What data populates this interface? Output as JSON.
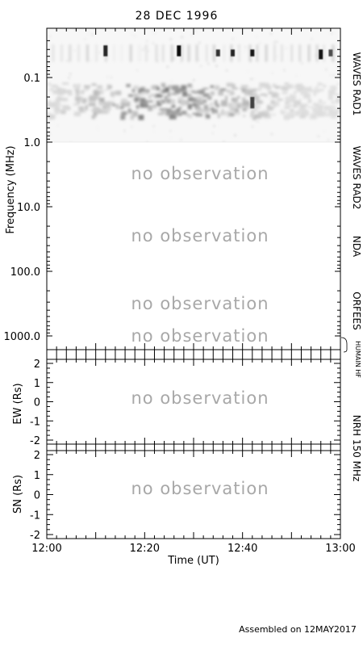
{
  "title": "28 DEC 1996",
  "footer": "Assembled on 12MAY2017",
  "colors": {
    "no_observation": "#a8a8a8",
    "axis": "#000000"
  },
  "no_observation_text": "no observation",
  "chart_data": [
    {
      "type": "heatmap",
      "ylabel": "Frequency (MHz)",
      "yscale": "log",
      "ylim": [
        0.02,
        1500
      ],
      "y_ticks": [
        "0.1",
        "1.0",
        "10.0",
        "100.0",
        "1000.0"
      ],
      "xlim": [
        "12:00",
        "13:00"
      ],
      "instrument_labels": [
        "WAVES RAD1",
        "WAVES RAD2",
        "NDA",
        "ORFEES",
        "HUMAIN HF"
      ],
      "bands": [
        {
          "instrument": "WAVES RAD1",
          "range_mhz": [
            0.02,
            1.0
          ],
          "status": "observed"
        },
        {
          "instrument": "WAVES RAD2",
          "range_mhz": [
            1.0,
            14.0
          ],
          "status": "no observation"
        },
        {
          "instrument": "NDA",
          "range_mhz": [
            14.0,
            80.0
          ],
          "status": "no observation"
        },
        {
          "instrument": "ORFEES",
          "range_mhz": [
            140.0,
            1000.0
          ],
          "status": "no observation"
        },
        {
          "instrument": "HUMAIN HF",
          "range_mhz": [
            1000.0,
            1500.0
          ],
          "status": "no observation"
        }
      ],
      "bursts": [
        {
          "time": "12:12",
          "freq_mhz": [
            0.035,
            0.05
          ],
          "intensity": 0.85
        },
        {
          "time": "12:27",
          "freq_mhz": [
            0.035,
            0.05
          ],
          "intensity": 0.95
        },
        {
          "time": "12:35",
          "freq_mhz": [
            0.04,
            0.05
          ],
          "intensity": 0.8
        },
        {
          "time": "12:38",
          "freq_mhz": [
            0.04,
            0.05
          ],
          "intensity": 0.85
        },
        {
          "time": "12:42",
          "freq_mhz": [
            0.04,
            0.05
          ],
          "intensity": 0.9
        },
        {
          "time": "12:42",
          "freq_mhz": [
            0.2,
            0.3
          ],
          "intensity": 0.75
        },
        {
          "time": "12:56",
          "freq_mhz": [
            0.04,
            0.055
          ],
          "intensity": 0.9
        },
        {
          "time": "12:58",
          "freq_mhz": [
            0.04,
            0.05
          ],
          "intensity": 0.7
        }
      ]
    },
    {
      "type": "scatter",
      "ylabel": "EW (Rs)",
      "right_label": "NRH 150 MHz",
      "ylim": [
        -2,
        2
      ],
      "y_ticks": [
        "2",
        "1",
        "0",
        "-1",
        "-2"
      ],
      "xlim": [
        "12:00",
        "13:00"
      ],
      "status": "no observation",
      "points": []
    },
    {
      "type": "scatter",
      "ylabel": "SN (Rs)",
      "ylim": [
        -2,
        2
      ],
      "y_ticks": [
        "2",
        "1",
        "0",
        "-1",
        "-2"
      ],
      "xlabel": "Time (UT)",
      "x_ticks": [
        "12:00",
        "12:20",
        "12:40",
        "13:00"
      ],
      "xlim": [
        "12:00",
        "13:00"
      ],
      "status": "no observation",
      "points": []
    }
  ]
}
